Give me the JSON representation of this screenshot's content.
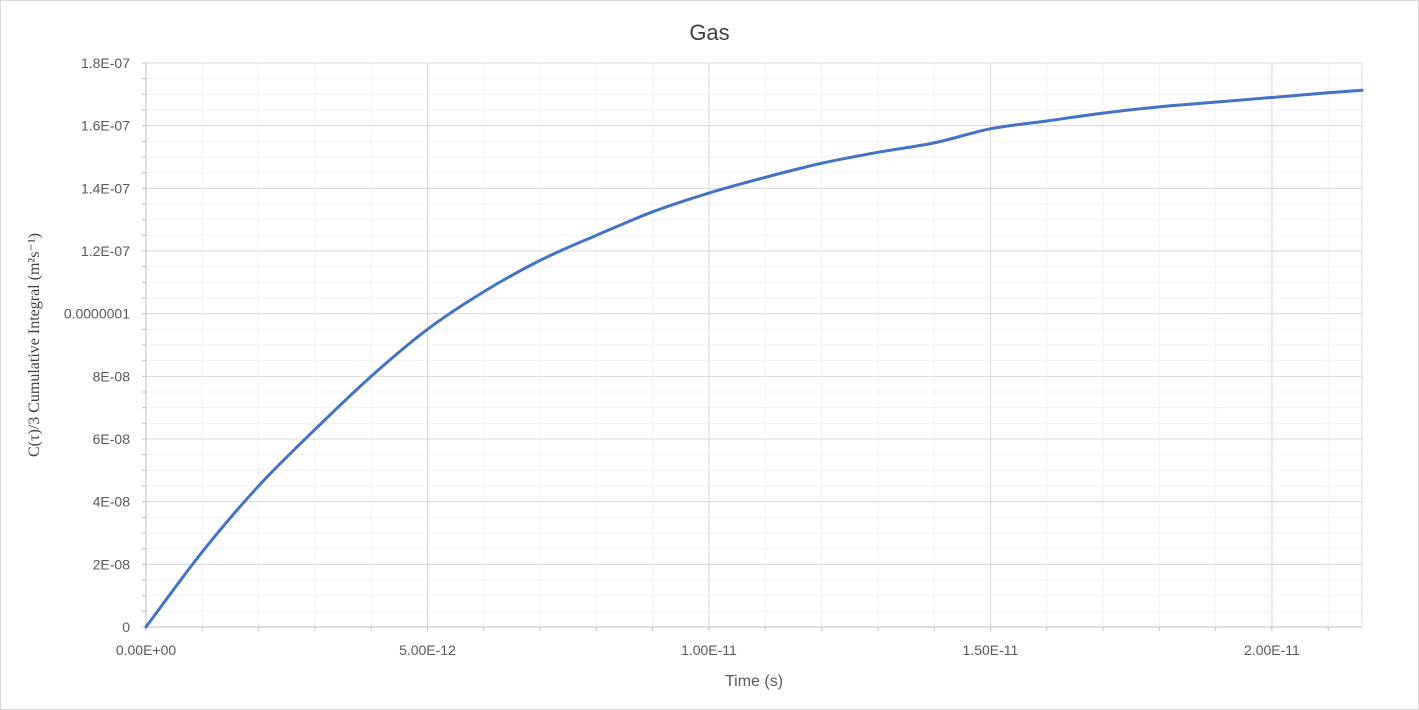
{
  "chart_data": {
    "type": "line",
    "title": "Gas",
    "xlabel": "Time (s)",
    "ylabel": "C(τ)/3 Cumulative Integral (m²s⁻¹)",
    "x_tick_labels": [
      "0.00E+00",
      "5.00E-12",
      "1.00E-11",
      "1.50E-11",
      "2.00E-11"
    ],
    "x_tick_values": [
      0,
      5e-12,
      1e-11,
      1.5e-11,
      2e-11
    ],
    "y_tick_labels": [
      "0",
      "2E-08",
      "4E-08",
      "6E-08",
      "8E-08",
      "0.0000001",
      "1.2E-07",
      "1.4E-07",
      "1.6E-07",
      "1.8E-07"
    ],
    "y_tick_values": [
      0,
      2e-08,
      4e-08,
      6e-08,
      8e-08,
      1e-07,
      1.2e-07,
      1.4e-07,
      1.6e-07,
      1.8e-07
    ],
    "xlim": [
      0,
      2.16e-11
    ],
    "ylim": [
      0,
      1.8e-07
    ],
    "grid": true,
    "series": [
      {
        "color": "#4472c4",
        "x": [
          0,
          1e-12,
          2e-12,
          3e-12,
          4e-12,
          5e-12,
          6e-12,
          7e-12,
          8e-12,
          9e-12,
          1e-11,
          1.1e-11,
          1.2e-11,
          1.3e-11,
          1.4e-11,
          1.5e-11,
          1.6e-11,
          1.7e-11,
          1.8e-11,
          1.9e-11,
          2e-11,
          2.1e-11,
          2.16e-11
        ],
        "y": [
          0,
          2.4e-08,
          4.5e-08,
          6.3e-08,
          8e-08,
          9.5e-08,
          1.07e-07,
          1.17e-07,
          1.25e-07,
          1.325e-07,
          1.385e-07,
          1.435e-07,
          1.48e-07,
          1.515e-07,
          1.545e-07,
          1.59e-07,
          1.615e-07,
          1.64e-07,
          1.66e-07,
          1.675e-07,
          1.69e-07,
          1.705e-07,
          1.713e-07
        ]
      }
    ]
  }
}
